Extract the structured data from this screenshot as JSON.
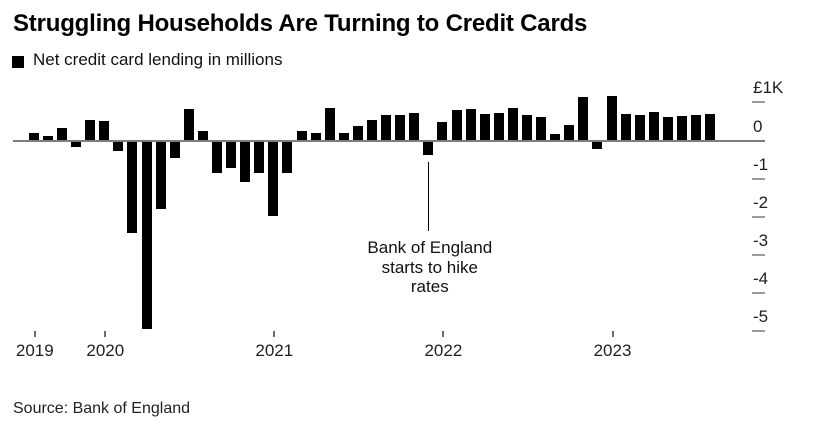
{
  "title": "Struggling Households Are Turning to Credit Cards",
  "legend": {
    "label": "Net credit card lending in millions",
    "swatch_color": "#000000"
  },
  "annotation": {
    "lines": [
      "Bank of England",
      "starts to hike",
      "rates"
    ],
    "anchor_month": "Dec 2021",
    "anchor_month_index": 28
  },
  "source": "Source: Bank of England",
  "colors": {
    "bar": "#000000",
    "axis_line": "#7d7d7d",
    "tick": "#9a9a9a",
    "text": "#111111",
    "background": "#ffffff"
  },
  "chart_data": {
    "type": "bar",
    "title": "Struggling Households Are Turning to Credit Cards",
    "series_name": "Net credit card lending in millions",
    "unit": "millions GBP",
    "categories": [
      "Aug 2019",
      "Sep 2019",
      "Oct 2019",
      "Nov 2019",
      "Dec 2019",
      "Jan 2020",
      "Feb 2020",
      "Mar 2020",
      "Apr 2020",
      "May 2020",
      "Jun 2020",
      "Jul 2020",
      "Aug 2020",
      "Sep 2020",
      "Oct 2020",
      "Nov 2020",
      "Dec 2020",
      "Jan 2021",
      "Feb 2021",
      "Mar 2021",
      "Apr 2021",
      "May 2021",
      "Jun 2021",
      "Jul 2021",
      "Aug 2021",
      "Sep 2021",
      "Oct 2021",
      "Nov 2021",
      "Dec 2021",
      "Jan 2022",
      "Feb 2022",
      "Mar 2022",
      "Apr 2022",
      "May 2022",
      "Jun 2022",
      "Jul 2022",
      "Aug 2022",
      "Sep 2022",
      "Oct 2022",
      "Nov 2022",
      "Dec 2022",
      "Jan 2023",
      "Feb 2023",
      "Mar 2023",
      "Apr 2023",
      "May 2023",
      "Jun 2023",
      "Jul 2023",
      "Aug 2023"
    ],
    "values": [
      210,
      120,
      330,
      -150,
      550,
      510,
      -250,
      -2390,
      -4930,
      -1780,
      -430,
      840,
      250,
      -820,
      -700,
      -1050,
      -830,
      -1950,
      -830,
      240,
      190,
      850,
      190,
      370,
      540,
      660,
      670,
      720,
      -360,
      480,
      810,
      830,
      700,
      730,
      850,
      660,
      630,
      180,
      400,
      1150,
      -190,
      1170,
      690,
      660,
      750,
      610,
      640,
      660,
      700
    ],
    "y_axis": {
      "side": "right",
      "top_label": "£1K",
      "ticks": [
        {
          "label": "£1K",
          "value": 1000
        },
        {
          "label": "0",
          "value": 0
        },
        {
          "label": "-1",
          "value": -1000
        },
        {
          "label": "-2",
          "value": -2000
        },
        {
          "label": "-3",
          "value": -3000
        },
        {
          "label": "-4",
          "value": -4000
        },
        {
          "label": "-5",
          "value": -5000
        }
      ],
      "ylim": [
        -5400,
        1300
      ],
      "gridlines": false
    },
    "x_axis": {
      "ticks": [
        {
          "label": "2019",
          "month_index": 0
        },
        {
          "label": "2020",
          "month_index": 5
        },
        {
          "label": "2021",
          "month_index": 17
        },
        {
          "label": "2022",
          "month_index": 29
        },
        {
          "label": "2023",
          "month_index": 41
        }
      ]
    },
    "annotation": {
      "text": "Bank of England starts to hike rates",
      "anchor_month_index": 28
    },
    "legend_position": "top-left"
  }
}
